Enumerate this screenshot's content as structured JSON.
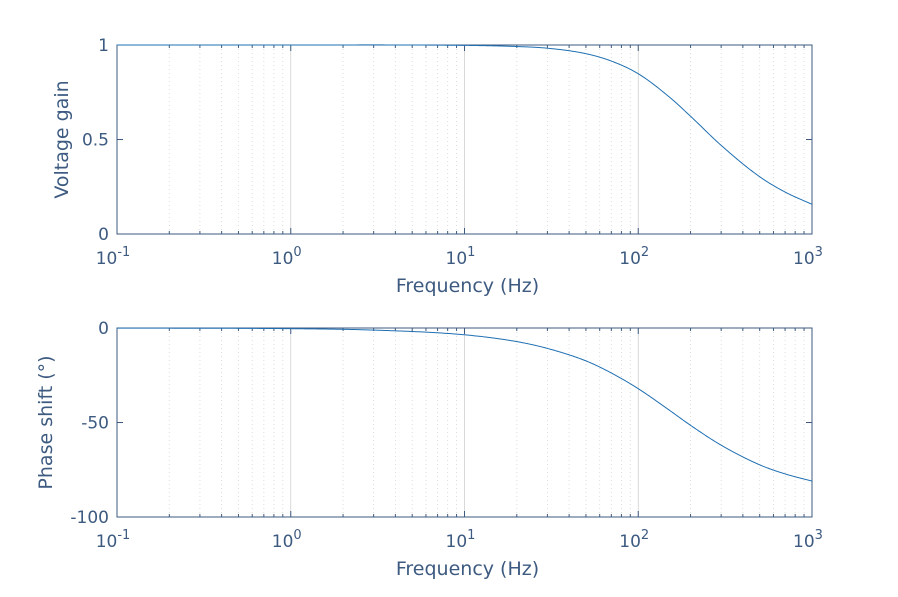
{
  "chart_data": [
    {
      "type": "line",
      "xscale": "log",
      "xlim": [
        0.1,
        1000
      ],
      "ylim": [
        0,
        1
      ],
      "xticks": [
        0.1,
        1,
        10,
        100,
        1000
      ],
      "xtick_labels": [
        {
          "base": "10",
          "exp": "-1"
        },
        {
          "base": "10",
          "exp": "0"
        },
        {
          "base": "10",
          "exp": "1"
        },
        {
          "base": "10",
          "exp": "2"
        },
        {
          "base": "10",
          "exp": "3"
        }
      ],
      "yticks": [
        0,
        0.5,
        1
      ],
      "ytick_labels": [
        "0",
        "0.5",
        "1"
      ],
      "xlabel": "Frequency (Hz)",
      "ylabel": "Voltage gain",
      "grid": "x-major-and-minor",
      "series": [
        {
          "color": "#1f6fb2",
          "x": [
            0.1,
            1,
            10,
            20,
            30,
            50,
            70,
            100,
            150,
            200,
            300,
            500,
            700,
            1000
          ],
          "y": [
            1.0,
            1.0,
            0.998,
            0.992,
            0.983,
            0.954,
            0.915,
            0.848,
            0.727,
            0.623,
            0.469,
            0.303,
            0.222,
            0.157
          ]
        }
      ]
    },
    {
      "type": "line",
      "xscale": "log",
      "xlim": [
        0.1,
        1000
      ],
      "ylim": [
        -100,
        0
      ],
      "xticks": [
        0.1,
        1,
        10,
        100,
        1000
      ],
      "xtick_labels": [
        {
          "base": "10",
          "exp": "-1"
        },
        {
          "base": "10",
          "exp": "0"
        },
        {
          "base": "10",
          "exp": "1"
        },
        {
          "base": "10",
          "exp": "2"
        },
        {
          "base": "10",
          "exp": "3"
        }
      ],
      "yticks": [
        -100,
        -50,
        0
      ],
      "ytick_labels": [
        "-100",
        "-50",
        "0"
      ],
      "xlabel": "Frequency (Hz)",
      "ylabel": "Phase shift (°)",
      "grid": "x-major-and-minor",
      "series": [
        {
          "color": "#1f6fb2",
          "x": [
            0.1,
            1,
            3,
            10,
            20,
            30,
            50,
            70,
            100,
            150,
            200,
            300,
            500,
            700,
            1000
          ],
          "y": [
            -0.04,
            -0.36,
            -1.1,
            -3.6,
            -7.2,
            -10.8,
            -17.4,
            -23.8,
            -32.1,
            -43.3,
            -51.5,
            -62.0,
            -72.4,
            -77.2,
            -81.0
          ]
        }
      ]
    }
  ]
}
